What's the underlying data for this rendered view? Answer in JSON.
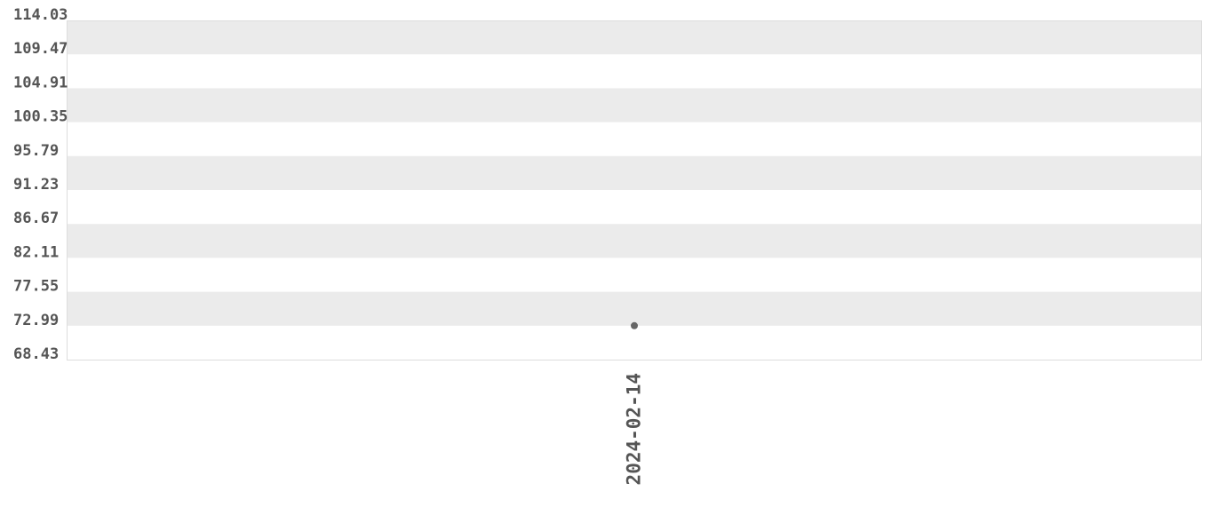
{
  "chart_data": {
    "type": "scatter",
    "title": "",
    "xlabel": "",
    "ylabel": "",
    "ylim": [
      68.43,
      114.03
    ],
    "y_ticks": [
      "68.43",
      "72.99",
      "77.55",
      "82.11",
      "86.67",
      "91.23",
      "95.79",
      "100.35",
      "104.91",
      "109.47",
      "114.03"
    ],
    "x_ticks": [
      "2024-02-14"
    ],
    "grid": "alternating horizontal bands",
    "series": [
      {
        "points": [
          {
            "x": "2024-02-14",
            "y": 72.99
          }
        ]
      }
    ],
    "colors": {
      "band": "#ebebeb",
      "point": "#666666",
      "text": "#555555",
      "border": "#dddddd"
    }
  }
}
